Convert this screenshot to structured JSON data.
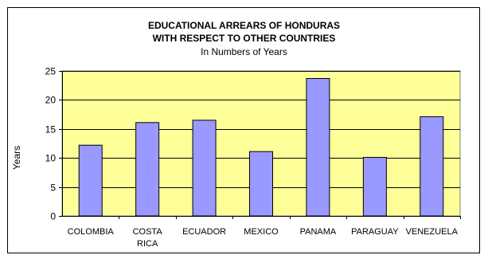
{
  "chart_data": {
    "type": "bar",
    "title": "EDUCATIONAL ARREARS OF HONDURAS",
    "title_line2": "WITH RESPECT TO OTHER COUNTRIES",
    "subtitle": "In Numbers of Years",
    "xlabel": "",
    "ylabel": "Years",
    "categories": [
      "COLOMBIA",
      "COSTA RICA",
      "ECUADOR",
      "MEXICO",
      "PANAMA",
      "PARAGUAY",
      "VENEZUELA"
    ],
    "category_label_lines": [
      [
        "COLOMBIA"
      ],
      [
        "COSTA",
        "RICA"
      ],
      [
        "ECUADOR"
      ],
      [
        "MEXICO"
      ],
      [
        "PANAMA"
      ],
      [
        "PARAGUAY"
      ],
      [
        "VENEZUELA"
      ]
    ],
    "values": [
      12.2,
      16.1,
      16.5,
      11.1,
      23.7,
      10.1,
      17.1
    ],
    "ylim": [
      0,
      25
    ],
    "yticks": [
      0,
      5,
      10,
      15,
      20,
      25
    ],
    "grid": true,
    "legend": "none",
    "colors": {
      "plot_background": "#ffff99",
      "bar_fill": "#9999ff",
      "bar_stroke": "#000000",
      "grid": "#000000"
    }
  }
}
